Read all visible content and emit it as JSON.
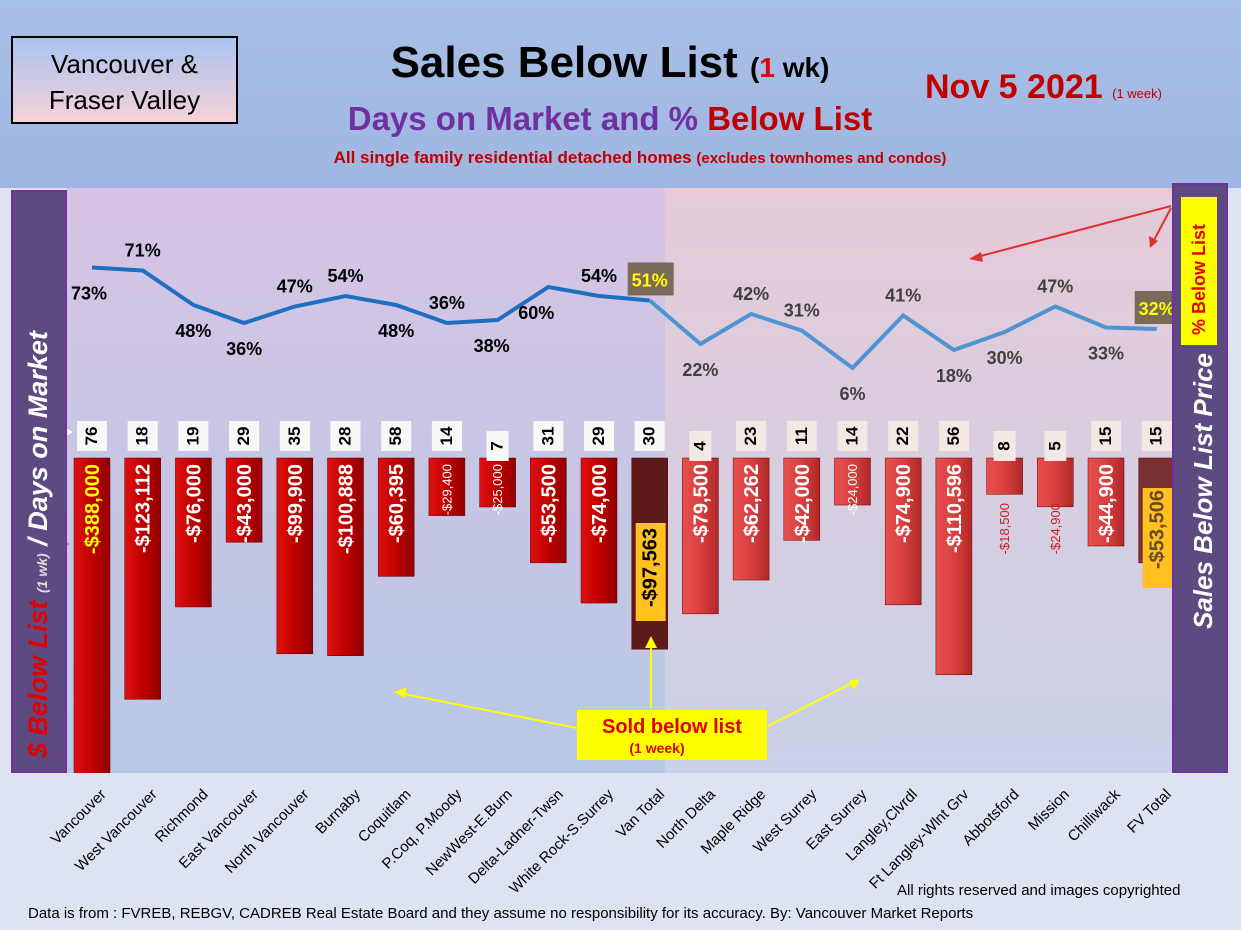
{
  "header": {
    "region_line1": "Vancouver &",
    "region_line2": "Fraser Valley",
    "title_main": "Sales Below List",
    "title_open": "(",
    "title_num": "1",
    "title_close": " wk)",
    "subtitle_main": "Days on Market and % ",
    "subtitle_red": "Below List",
    "desc_main": "All single family residential detached homes ",
    "desc_small": "(excludes townhomes and condos)",
    "date": "Nov 5  2021",
    "date_note": "(1 week)"
  },
  "side_labels": {
    "left_red": "$ Below List",
    "left_small": "(1 wk)",
    "left_main": "/ Days on Market",
    "right_main": "Sales Below List Price",
    "right_callout": "% Below List"
  },
  "callout": {
    "line1": "Sold below list",
    "line2": "(1 week)"
  },
  "footer": {
    "rights": "All rights reserved and  images copyrighted",
    "source": "Data is from : FVREB, REBGV, CADREB Real Estate Board and they assume no responsibility for its accuracy. By: Vancouver Market Reports"
  },
  "colors": {
    "bar_red": "#c00000",
    "bar_total": "#5c1a1a",
    "bar_fv": "#d84040",
    "line_van": "#1f6fc0",
    "line_fv": "#4f94d0",
    "side_panel": "#5c4a80"
  },
  "chart_data": {
    "type": "bar",
    "title": "Sales Below List (1 wk)",
    "categories": [
      "Vancouver",
      "West Vancouver",
      "Richmond",
      "East Vancouver",
      "North Vancouver",
      "Burnaby",
      "Coquitlam",
      "P.Coq, P.Moody",
      "NewWest-E.Burn",
      "Delta-Ladner-Twsn",
      "White Rock-S.Surrey",
      "Van Total",
      "North Delta",
      "Maple Ridge",
      "West Surrey",
      "East Surrey",
      "Langley,Clvrdl",
      "Ft Langley-Wlnt Grv",
      "Abbotsford",
      "Mission",
      "Chilliwack",
      "FV Total"
    ],
    "series": [
      {
        "name": "$ Below List",
        "values": [
          -388000,
          -123112,
          -76000,
          -43000,
          -99900,
          -100888,
          -60395,
          -29400,
          -25000,
          -53500,
          -74000,
          -97563,
          -79500,
          -62262,
          -42000,
          -24000,
          -74900,
          -110596,
          -18500,
          -24900,
          -44900,
          -53506
        ]
      },
      {
        "name": "% Below List",
        "values": [
          73,
          71,
          48,
          36,
          47,
          54,
          48,
          36,
          38,
          60,
          54,
          51,
          22,
          42,
          31,
          6,
          41,
          18,
          30,
          47,
          33,
          32
        ]
      },
      {
        "name": "Days on Market",
        "values": [
          76,
          18,
          19,
          29,
          35,
          28,
          58,
          14,
          7,
          31,
          29,
          30,
          4,
          23,
          11,
          14,
          22,
          56,
          8,
          5,
          15,
          15
        ]
      }
    ],
    "bar_labels": [
      "-$388,000",
      "-$123,112",
      "-$76,000",
      "-$43,000",
      "-$99,900",
      "-$100,888",
      "-$60,395",
      "-$29,400",
      "-$25,000",
      "-$53,500",
      "-$74,000",
      "-$97,563",
      "-$79,500",
      "-$62,262",
      "-$42,000",
      "-$24,000",
      "-$74,900",
      "-$110,596",
      "-$18,500",
      "-$24,900",
      "-$44,900",
      "-$53,506"
    ],
    "pct_labels": [
      "73%",
      "71%",
      "48%",
      "36%",
      "47%",
      "54%",
      "48%",
      "36%",
      "38%",
      "60%",
      "54%",
      "51%",
      "22%",
      "42%",
      "31%",
      "6%",
      "41%",
      "18%",
      "30%",
      "47%",
      "33%",
      "32%"
    ]
  }
}
